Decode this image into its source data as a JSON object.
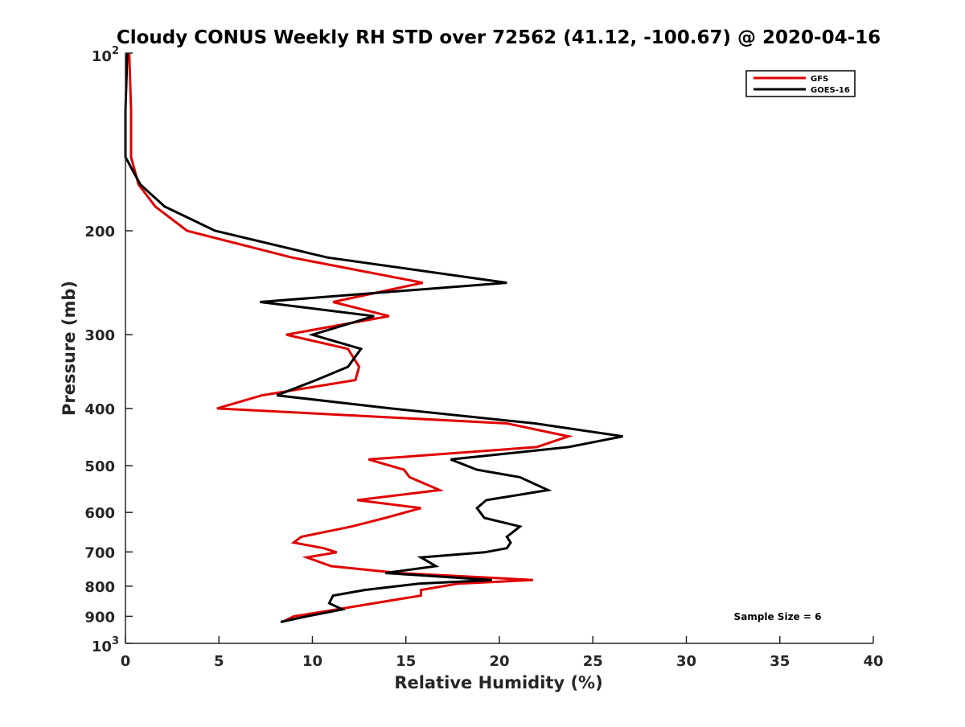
{
  "chart_data": {
    "type": "line",
    "title": "Cloudy CONUS Weekly RH STD over 72562 (41.12, -100.67) @ 2020-04-16",
    "xlabel": "Relative Humidity (%)",
    "ylabel": "Pressure (mb)",
    "xlim": [
      0,
      40
    ],
    "ylim": [
      100,
      1000
    ],
    "y_scale": "log",
    "y_reversed": true,
    "grid": false,
    "legend_position": "top-right",
    "xticks": [
      0,
      5,
      10,
      15,
      20,
      25,
      30,
      35,
      40
    ],
    "xtick_labels": [
      "0",
      "5",
      "10",
      "15",
      "20",
      "25",
      "30",
      "35",
      "40"
    ],
    "yticks": [
      {
        "value": 100,
        "base": "10",
        "exp": "2",
        "text": ""
      },
      {
        "value": 200,
        "text": "200"
      },
      {
        "value": 300,
        "text": "300"
      },
      {
        "value": 400,
        "text": "400"
      },
      {
        "value": 500,
        "text": "500"
      },
      {
        "value": 600,
        "text": "600"
      },
      {
        "value": 700,
        "text": "700"
      },
      {
        "value": 800,
        "text": "800"
      },
      {
        "value": 900,
        "text": "900"
      },
      {
        "value": 1000,
        "base": "10",
        "exp": "3",
        "text": ""
      }
    ],
    "annotation": "Sample Size = 6",
    "series": [
      {
        "name": "GFS",
        "color": "#e00000",
        "points": [
          [
            0.2,
            100
          ],
          [
            0.3,
            125
          ],
          [
            0.3,
            150
          ],
          [
            0.7,
            167
          ],
          [
            1.6,
            182
          ],
          [
            3.3,
            200
          ],
          [
            8.9,
            222
          ],
          [
            15.9,
            245
          ],
          [
            11.1,
            264
          ],
          [
            14.1,
            279
          ],
          [
            8.6,
            300
          ],
          [
            11.9,
            317
          ],
          [
            12.5,
            340
          ],
          [
            12.3,
            358
          ],
          [
            7.3,
            380
          ],
          [
            4.9,
            400
          ],
          [
            20.4,
            424
          ],
          [
            23.7,
            446
          ],
          [
            22.0,
            465
          ],
          [
            13.0,
            488
          ],
          [
            14.9,
            508
          ],
          [
            15.2,
            523
          ],
          [
            16.8,
            550
          ],
          [
            12.4,
            572
          ],
          [
            15.8,
            590
          ],
          [
            13.9,
            613
          ],
          [
            12.1,
            634
          ],
          [
            9.4,
            660
          ],
          [
            9.0,
            675
          ],
          [
            10.6,
            690
          ],
          [
            11.3,
            701
          ],
          [
            9.7,
            715
          ],
          [
            11.0,
            740
          ],
          [
            14.6,
            760
          ],
          [
            21.8,
            781
          ],
          [
            17.8,
            792
          ],
          [
            15.8,
            812
          ],
          [
            15.8,
            830
          ],
          [
            13.3,
            855
          ],
          [
            11.3,
            876
          ],
          [
            9.0,
            900
          ],
          [
            8.4,
            920
          ]
        ]
      },
      {
        "name": "GOES-16",
        "color": "#000000",
        "points": [
          [
            0.1,
            100
          ],
          [
            0.0,
            125
          ],
          [
            0.0,
            150
          ],
          [
            0.8,
            167
          ],
          [
            2.1,
            182
          ],
          [
            4.8,
            200
          ],
          [
            10.8,
            222
          ],
          [
            20.4,
            245
          ],
          [
            7.2,
            264
          ],
          [
            13.3,
            279
          ],
          [
            10.0,
            300
          ],
          [
            12.6,
            317
          ],
          [
            11.9,
            340
          ],
          [
            10.2,
            358
          ],
          [
            8.1,
            380
          ],
          [
            14.2,
            400
          ],
          [
            21.9,
            424
          ],
          [
            26.6,
            446
          ],
          [
            23.7,
            465
          ],
          [
            17.4,
            488
          ],
          [
            18.8,
            508
          ],
          [
            21.1,
            523
          ],
          [
            22.6,
            550
          ],
          [
            19.3,
            572
          ],
          [
            18.8,
            590
          ],
          [
            19.2,
            613
          ],
          [
            21.1,
            634
          ],
          [
            20.4,
            660
          ],
          [
            20.6,
            675
          ],
          [
            20.4,
            690
          ],
          [
            19.2,
            701
          ],
          [
            15.8,
            715
          ],
          [
            16.6,
            740
          ],
          [
            13.9,
            760
          ],
          [
            19.6,
            781
          ],
          [
            15.7,
            792
          ],
          [
            12.8,
            812
          ],
          [
            11.1,
            830
          ],
          [
            10.9,
            855
          ],
          [
            11.6,
            876
          ],
          [
            9.7,
            900
          ],
          [
            8.3,
            920
          ]
        ]
      }
    ]
  }
}
